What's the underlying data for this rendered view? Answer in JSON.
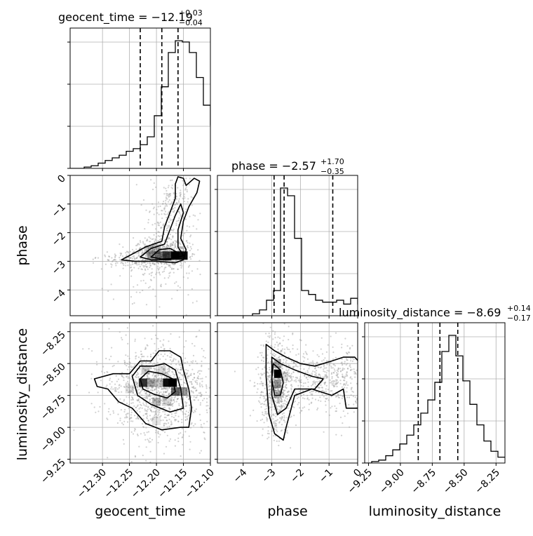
{
  "chart_data": {
    "type": "corner",
    "parameters": [
      "geocent_time",
      "phase",
      "luminosity_distance"
    ],
    "titles": [
      {
        "param": "geocent_time",
        "text": "geocent_time = −12.19",
        "plus": "+0.03",
        "minus": "−0.04",
        "median": -12.19,
        "q16": -12.23,
        "q84": -12.16
      },
      {
        "param": "phase",
        "text": "phase = −2.57",
        "plus": "+1.70",
        "minus": "−0.35",
        "median": -2.57,
        "q16": -2.92,
        "q84": -0.87
      },
      {
        "param": "luminosity_distance",
        "text": "luminosity_distance = −8.69",
        "plus": "+0.14",
        "minus": "−0.17",
        "median": -8.69,
        "q16": -8.86,
        "q84": -8.55
      }
    ],
    "ranges": {
      "geocent_time": [
        -12.36,
        -12.1
      ],
      "phase": [
        -4.9,
        0.0
      ],
      "luminosity_distance": [
        -9.28,
        -8.18
      ]
    },
    "tick_labels": {
      "geocent_time": [
        "−12.30",
        "−12.25",
        "−12.20",
        "−12.15",
        "−12.10"
      ],
      "phase": [
        "−4",
        "−3",
        "−2",
        "−1",
        "0"
      ],
      "luminosity_distance": [
        "−9.25",
        "−9.00",
        "−8.75",
        "−8.50",
        "−8.25"
      ]
    },
    "tick_values": {
      "geocent_time": [
        -12.3,
        -12.25,
        -12.2,
        -12.15,
        -12.1
      ],
      "phase": [
        -4,
        -3,
        -2,
        -1,
        0
      ],
      "luminosity_distance": [
        -9.25,
        -9.0,
        -8.75,
        -8.5,
        -8.25
      ]
    },
    "axis_labels": {
      "x": [
        "geocent_time",
        "phase",
        "luminosity_distance"
      ],
      "y": [
        "phase",
        "luminosity_distance"
      ]
    },
    "histograms": {
      "geocent_time": {
        "edges_start": -12.36,
        "bin_width": 0.013,
        "counts": [
          0,
          0,
          1,
          2,
          4,
          6,
          8,
          10,
          13,
          15,
          18,
          24,
          40,
          62,
          88,
          97,
          96,
          88,
          69,
          48,
          33,
          15,
          5,
          1,
          0
        ]
      },
      "phase": {
        "edges_start": -4.9,
        "bin_width": 0.245,
        "counts": [
          0,
          0,
          0,
          0,
          0,
          1,
          3,
          8,
          13,
          66,
          62,
          40,
          13,
          11,
          8,
          7,
          7,
          8,
          6,
          9,
          6
        ]
      },
      "luminosity_distance": {
        "edges_start": -9.28,
        "bin_width": 0.055,
        "counts": [
          0,
          1,
          2,
          5,
          9,
          13,
          19,
          26,
          34,
          43,
          55,
          76,
          87,
          73,
          56,
          40,
          26,
          15,
          8,
          4
        ]
      }
    },
    "grid": true,
    "quantile_lines": "dashed"
  }
}
